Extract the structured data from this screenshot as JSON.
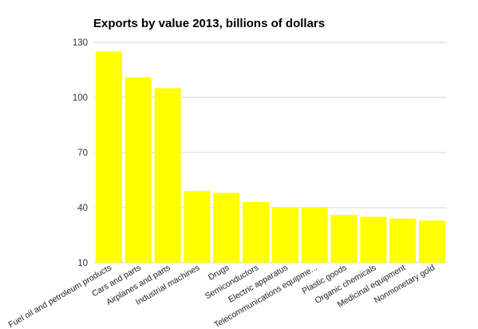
{
  "chart_data": {
    "type": "bar",
    "title": "Exports by value 2013, billions of dollars",
    "xlabel": "",
    "ylabel": "",
    "ylim": [
      10,
      130
    ],
    "yticks": [
      10,
      40,
      70,
      100,
      130
    ],
    "grid": "horizontal",
    "legend": "none",
    "bar_color": "#FFFF00",
    "categories": [
      "Fuel oil and petroleum products",
      "Cars and parts",
      "Airplanes and parts",
      "Industrial machines",
      "Drugs",
      "Semiconductors",
      "Electric apparatus",
      "Telecommunications equipme...",
      "Plastic goods",
      "Organic chemicals",
      "Medicinal equipment",
      "Nonmonetary gold"
    ],
    "values": [
      125,
      111,
      105,
      49,
      48,
      43,
      40,
      40,
      36,
      35,
      34,
      33
    ]
  }
}
